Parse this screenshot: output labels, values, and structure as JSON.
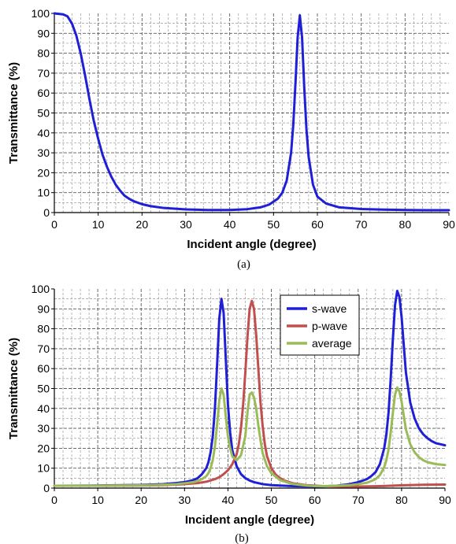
{
  "chart_data": [
    {
      "type": "line",
      "panel_label": "(a)",
      "xlabel": "Incident angle (degree)",
      "ylabel": "Transmittance (%)",
      "xlim": [
        0,
        90
      ],
      "ylim": [
        0,
        100
      ],
      "x_ticks": [
        "0",
        "10",
        "20",
        "30",
        "40",
        "50",
        "60",
        "70",
        "80",
        "90"
      ],
      "y_ticks": [
        "0",
        "10",
        "20",
        "30",
        "40",
        "50",
        "60",
        "70",
        "80",
        "90",
        "100"
      ],
      "grid": "major and minor, dashed",
      "legend": "none",
      "series": [
        {
          "color": "#1f1fd6",
          "x": [
            0,
            2,
            3,
            4,
            5,
            6,
            7,
            8,
            9,
            10,
            11,
            12,
            13,
            14,
            15,
            16,
            17,
            18,
            20,
            22,
            25,
            30,
            35,
            40,
            44,
            47,
            49,
            51,
            52,
            53,
            54,
            54.5,
            55,
            55.5,
            56,
            56.5,
            57,
            57.5,
            58,
            59,
            60,
            62,
            65,
            70,
            75,
            80,
            85,
            90
          ],
          "y": [
            100,
            99.5,
            98.5,
            95,
            89,
            80,
            69,
            57,
            46,
            37,
            29,
            23,
            18,
            14,
            11,
            8.5,
            7,
            5.8,
            4.2,
            3.2,
            2.3,
            1.6,
            1.3,
            1.3,
            1.7,
            2.6,
            4,
            7,
            10,
            16,
            30,
            44,
            65,
            88,
            99,
            88,
            63,
            42,
            28,
            14,
            8,
            4.5,
            2.6,
            1.8,
            1.5,
            1.3,
            1.2,
            1.2
          ]
        }
      ]
    },
    {
      "type": "line",
      "panel_label": "(b)",
      "xlabel": "Incident angle (degree)",
      "ylabel": "Transmittance (%)",
      "xlim": [
        0,
        90
      ],
      "ylim": [
        0,
        100
      ],
      "x_ticks": [
        "0",
        "10",
        "20",
        "30",
        "40",
        "50",
        "60",
        "70",
        "80",
        "90"
      ],
      "y_ticks": [
        "0",
        "10",
        "20",
        "30",
        "40",
        "50",
        "60",
        "70",
        "80",
        "90",
        "100"
      ],
      "grid": "major and minor, dashed",
      "legend": "top-right",
      "series": [
        {
          "name": "s-wave",
          "color": "#1f1fd6",
          "x": [
            0,
            10,
            20,
            25,
            28,
            30,
            32,
            33,
            34,
            35,
            35.5,
            36,
            36.5,
            37,
            37.5,
            38,
            38.5,
            39,
            39.5,
            40,
            40.5,
            41,
            42,
            43,
            44,
            45,
            46,
            48,
            50,
            55,
            60,
            62,
            65,
            68,
            70,
            72,
            73,
            74,
            75,
            76,
            76.5,
            77,
            77.5,
            78,
            78.5,
            79,
            79.5,
            80,
            80.5,
            81,
            82,
            83,
            84,
            85,
            86,
            87,
            88,
            89,
            90
          ],
          "y": [
            1.2,
            1.3,
            1.6,
            2,
            2.5,
            3,
            4,
            5,
            7,
            10,
            13,
            18,
            26,
            40,
            62,
            85,
            95,
            88,
            65,
            42,
            28,
            19,
            11,
            7,
            5,
            3.8,
            3,
            2,
            1.5,
            1,
            0.8,
            0.9,
            1.2,
            2,
            3,
            4.5,
            6,
            8,
            12,
            20,
            27,
            38,
            55,
            75,
            92,
            99,
            96,
            86,
            72,
            58,
            43,
            35,
            30,
            27,
            25,
            23.5,
            22.5,
            22,
            21.5
          ]
        },
        {
          "name": "p-wave",
          "color": "#c0504d",
          "x": [
            0,
            10,
            20,
            25,
            30,
            33,
            35,
            37,
            38,
            39,
            40,
            41,
            42,
            42.5,
            43,
            43.5,
            44,
            44.5,
            45,
            45.5,
            46,
            46.5,
            47,
            47.5,
            48,
            48.5,
            49,
            50,
            51,
            52,
            53,
            55,
            58,
            62,
            66,
            70,
            75,
            80,
            85,
            90
          ],
          "y": [
            1.2,
            1.2,
            1.3,
            1.5,
            2,
            2.5,
            3.2,
            4.5,
            5.5,
            7,
            9,
            12,
            17,
            22,
            30,
            42,
            58,
            76,
            90,
            94,
            90,
            77,
            60,
            43,
            31,
            22,
            16,
            10,
            6.8,
            5,
            3.8,
            2.4,
            1.5,
            1,
            0.8,
            0.8,
            1,
            1.4,
            1.7,
            1.8
          ]
        },
        {
          "name": "average",
          "color": "#9bbb59",
          "x": [
            0,
            10,
            20,
            25,
            28,
            30,
            32,
            33,
            34,
            35,
            35.5,
            36,
            36.5,
            37,
            37.5,
            38,
            38.5,
            39,
            39.5,
            40,
            40.5,
            41,
            42,
            43,
            44,
            44.5,
            45,
            45.5,
            46,
            46.5,
            47,
            47.5,
            48,
            49,
            50,
            52,
            55,
            58,
            60,
            62,
            65,
            68,
            70,
            72,
            73,
            74,
            75,
            76,
            76.5,
            77,
            77.5,
            78,
            78.5,
            79,
            79.5,
            80,
            80.5,
            81,
            82,
            83,
            84,
            85,
            86,
            87,
            88,
            89,
            90
          ],
          "y": [
            1.2,
            1.2,
            1.4,
            1.7,
            2,
            2.4,
            3,
            3.6,
            4.5,
            6,
            7.5,
            10,
            14,
            21,
            32,
            44,
            50,
            47,
            36,
            26,
            20,
            16,
            14,
            16.5,
            26,
            38,
            47,
            48,
            45.5,
            40,
            31.5,
            24,
            17.5,
            11,
            7.5,
            4,
            2,
            1.3,
            1,
            1,
            1.2,
            1.5,
            2,
            2.7,
            3.5,
            4.5,
            6.5,
            10.5,
            14,
            19.5,
            28,
            38,
            47,
            50.5,
            48.5,
            43.5,
            36.5,
            29.5,
            22,
            18,
            15.5,
            14,
            13,
            12.5,
            12,
            11.8,
            11.6
          ]
        }
      ]
    }
  ]
}
